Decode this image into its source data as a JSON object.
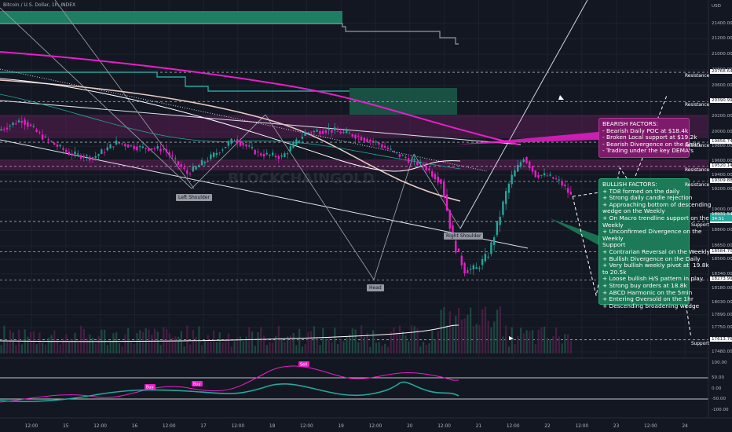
{
  "header": {
    "title": "Bitcoin / U.S. Dollar, 1h, INDEX"
  },
  "watermark": "BLOCKCHAINGOLD",
  "price_axis": {
    "currency": "USD",
    "ticks": [
      "21400.00",
      "21200.00",
      "21000.00",
      "20800.00",
      "20600.00",
      "20400.00",
      "20200.00",
      "20000.00",
      "19800.00",
      "19600.00",
      "19400.00",
      "19200.00",
      "19000.00",
      "18800.00",
      "18650.00",
      "18500.00",
      "18340.00",
      "18180.00",
      "18030.00",
      "17890.00",
      "17750.00",
      "17610.00",
      "17480.00"
    ],
    "levels": [
      {
        "price": "20768.64",
        "label": "Resistance",
        "boxed": true
      },
      {
        "price": "20390.99",
        "label": "Resistance",
        "boxed": true
      },
      {
        "price": "19856.74",
        "label": "Resistance",
        "boxed": true
      },
      {
        "price": "19520.14",
        "label": "Resistance",
        "boxed": true
      },
      {
        "price": "19309.88",
        "label": "Resistance",
        "boxed": true
      },
      {
        "price": "18887.41",
        "label": "Support",
        "boxed": true
      },
      {
        "price": "18584.70",
        "label": "",
        "boxed": true
      },
      {
        "price": "18273.99",
        "label": "",
        "boxed": true
      },
      {
        "price": "17613.70",
        "label": "Support",
        "boxed": true
      }
    ],
    "current_price": "18931.54",
    "current_price_sub": "34:51",
    "current_color": "#26a69a"
  },
  "osc_axis": {
    "ticks": [
      "100.00",
      "50.00",
      "0.00",
      "-50.00",
      "-100.00"
    ]
  },
  "time_axis": {
    "ticks": [
      "12:00",
      "15",
      "12:00",
      "16",
      "12:00",
      "17",
      "12:00",
      "18",
      "12:00",
      "19",
      "12:00",
      "20",
      "12:00",
      "21",
      "12:00",
      "22",
      "12:00",
      "23",
      "12:00",
      "24"
    ]
  },
  "pattern_labels": {
    "left_shoulder": "Left Shoulder",
    "head": "Head",
    "right_shoulder": "Right Shoulder"
  },
  "bearish": {
    "title": "BEARISH FACTORS:",
    "items": [
      "- Bearish Daily POC at $18.4k",
      "- Broken Local support at $19.2k",
      "- Bearish Divergence on the 5min",
      "- Trading under the key DEMA's"
    ]
  },
  "bullish": {
    "title": "BULLISH FACTORS:",
    "items": [
      "+ TD8 formed on the daily",
      "+ Strong daily candle rejection",
      "+ Approaching bottom of descending",
      "wedge on the Weekly",
      "+ On Macro trendline support on the",
      "Weekly",
      "+ Unconfirmed Divergence on the",
      "Weekly",
      "Support",
      "+ Contrarian Reversal on the Weekly",
      "+ Bullish Divergence on the Daily",
      "+ Very bullish weekly pivot at  19.8k",
      "to 20.5k",
      "+ Loose bullish H/S pattern in play",
      "+ Strong buy orders at 18.8k",
      "+ ABCD Harmonic on the 5min",
      "+ Entering Oversold on the 1hr",
      "+ Descending broadening wedge"
    ]
  },
  "osc_badges": [
    "Sell",
    "Buy",
    "Buy"
  ],
  "colors": {
    "bull": "#26a69a",
    "bear": "#e91ec9",
    "bg": "#131722",
    "resistance_band": "#5a1d52",
    "green_band": "#1c5f4c"
  },
  "chart_data": {
    "type": "line",
    "title": "Bitcoin / U.S. Dollar, 1h, INDEX",
    "ylabel": "USD",
    "ylim": [
      17380,
      21700
    ],
    "x_range_hours": [
      0,
      240
    ],
    "price_path": [
      {
        "t": 0,
        "p": 20020
      },
      {
        "t": 8,
        "p": 20160
      },
      {
        "t": 16,
        "p": 19900
      },
      {
        "t": 24,
        "p": 19700
      },
      {
        "t": 32,
        "p": 19640
      },
      {
        "t": 40,
        "p": 19850
      },
      {
        "t": 48,
        "p": 19780
      },
      {
        "t": 56,
        "p": 19760
      },
      {
        "t": 64,
        "p": 19420
      },
      {
        "t": 72,
        "p": 19650
      },
      {
        "t": 80,
        "p": 19900
      },
      {
        "t": 88,
        "p": 19700
      },
      {
        "t": 96,
        "p": 19650
      },
      {
        "t": 104,
        "p": 19990
      },
      {
        "t": 112,
        "p": 20030
      },
      {
        "t": 120,
        "p": 19960
      },
      {
        "t": 128,
        "p": 19850
      },
      {
        "t": 136,
        "p": 19670
      },
      {
        "t": 144,
        "p": 19530
      },
      {
        "t": 150,
        "p": 19300
      },
      {
        "t": 154,
        "p": 18700
      },
      {
        "t": 158,
        "p": 18380
      },
      {
        "t": 162,
        "p": 18400
      },
      {
        "t": 166,
        "p": 18560
      },
      {
        "t": 170,
        "p": 18950
      },
      {
        "t": 174,
        "p": 19380
      },
      {
        "t": 178,
        "p": 19650
      },
      {
        "t": 182,
        "p": 19400
      },
      {
        "t": 186,
        "p": 19390
      },
      {
        "t": 190,
        "p": 19310
      },
      {
        "t": 194,
        "p": 19130
      }
    ],
    "projection": [
      {
        "t": 194,
        "p": 19130
      },
      {
        "t": 202,
        "p": 18100
      },
      {
        "t": 210,
        "p": 19500
      },
      {
        "t": 214,
        "p": 19250
      },
      {
        "t": 226,
        "p": 20480
      }
    ],
    "projection_alt": [
      {
        "t": 194,
        "p": 19130
      },
      {
        "t": 226,
        "p": 19300
      },
      {
        "t": 234,
        "p": 17660
      }
    ]
  }
}
